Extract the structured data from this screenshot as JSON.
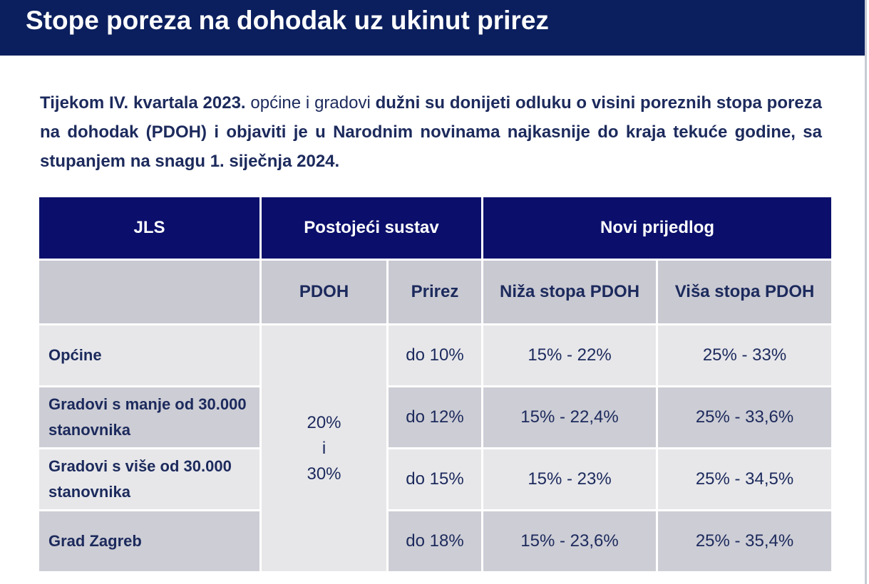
{
  "title": "Stope poreza na dohodak uz ukinut prirez",
  "intro": {
    "part1": "Tijekom IV. kvartala 2023.",
    "part2": " općine i gradovi ",
    "part3": "dužni su donijeti odluku o visini poreznih stopa poreza na dohodak (PDOH) i objaviti je u Narodnim novinama najkasnije do kraja tekuće godine, sa stupanjem na snagu 1. siječnja 2024."
  },
  "table": {
    "headers": {
      "jls": "JLS",
      "current": "Postojeći sustav",
      "new": "Novi prijedlog"
    },
    "subheaders": {
      "pdoh": "PDOH",
      "prirez": "Prirez",
      "lower": "Niža stopa PDOH",
      "higher": "Viša stopa PDOH"
    },
    "pdoh_merged": {
      "line1": "20%",
      "line2": "i",
      "line3": "30%"
    },
    "rows": [
      {
        "jls": "Općine",
        "prirez": "do 10%",
        "lower": "15% - 22%",
        "higher": "25% - 33%"
      },
      {
        "jls": "Gradovi s manje od 30.000 stanovnika",
        "prirez": "do 12%",
        "lower": "15% - 22,4%",
        "higher": "25% - 33,6%"
      },
      {
        "jls": "Gradovi s više od 30.000 stanovnika",
        "prirez": "do 15%",
        "lower": "15% - 23%",
        "higher": "25% - 34,5%"
      },
      {
        "jls": "Grad Zagreb",
        "prirez": "do 18%",
        "lower": "15% - 23,6%",
        "higher": "25% - 35,4%"
      }
    ]
  }
}
